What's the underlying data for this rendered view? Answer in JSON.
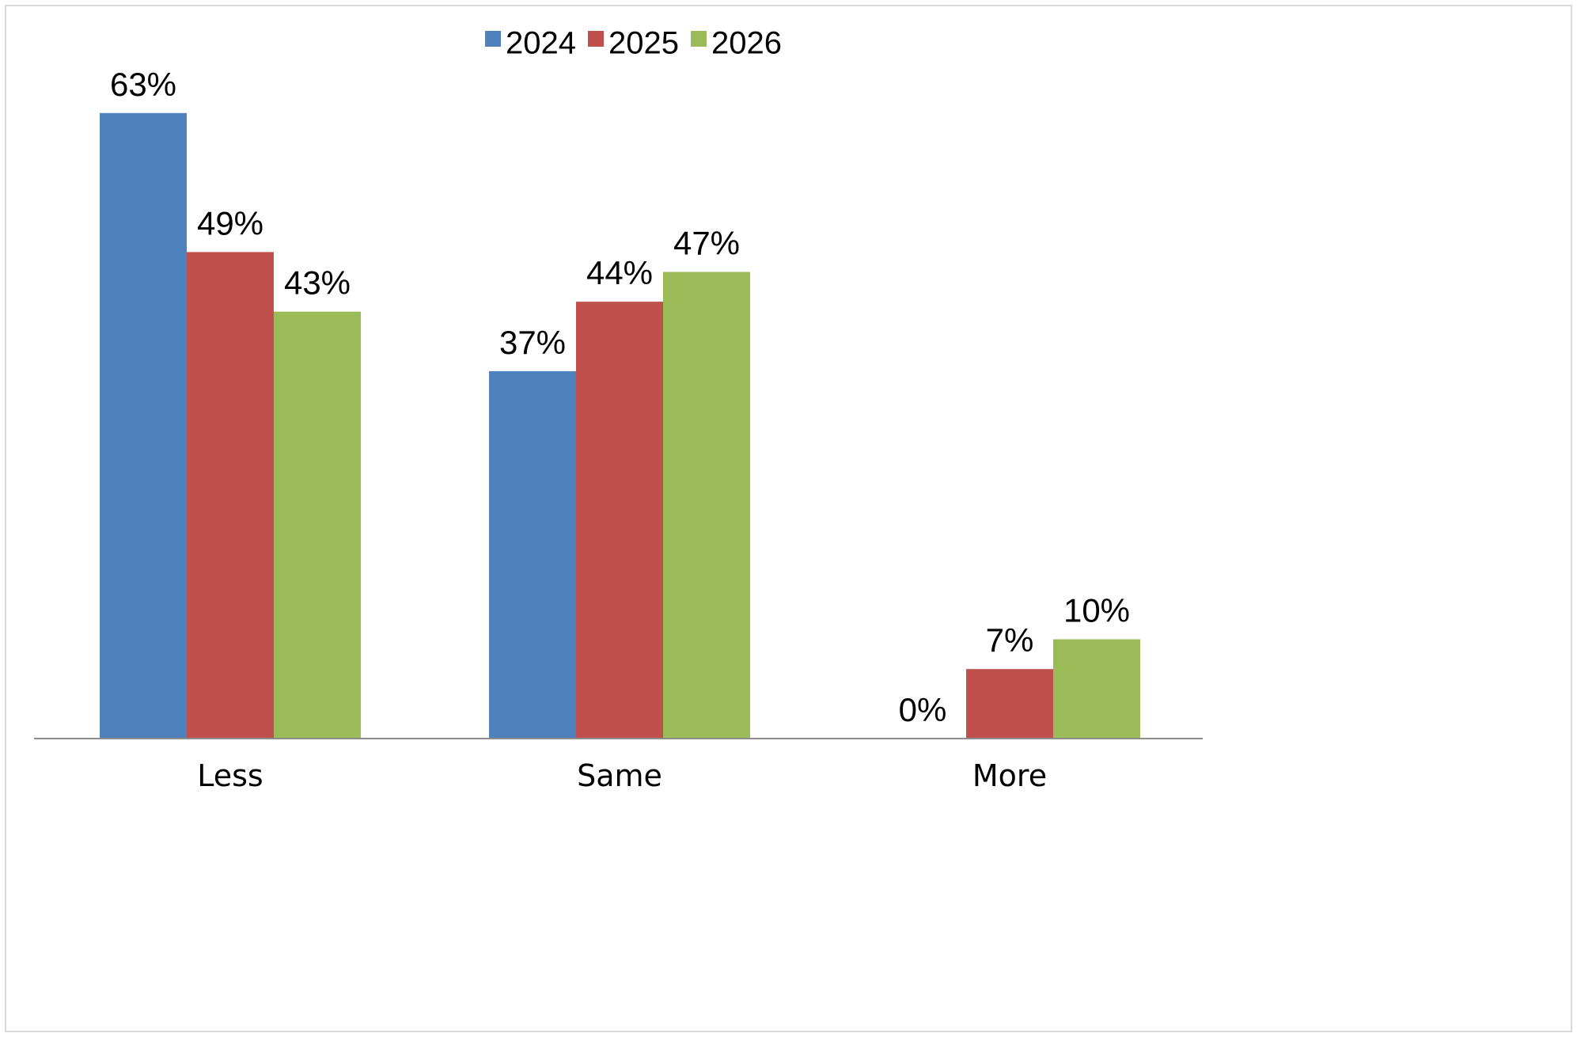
{
  "chart_data": {
    "type": "bar",
    "categories": [
      "Less",
      "Same",
      "More"
    ],
    "series": [
      {
        "name": "2024",
        "color": "#4F81BD",
        "values": [
          63,
          37,
          0
        ],
        "labels": [
          "63%",
          "37%",
          "0%"
        ]
      },
      {
        "name": "2025",
        "color": "#C0504D",
        "values": [
          49,
          44,
          7
        ],
        "labels": [
          "49%",
          "44%",
          "7%"
        ]
      },
      {
        "name": "2026",
        "color": "#9BBB59",
        "values": [
          43,
          47,
          10
        ],
        "labels": [
          "43%",
          "47%",
          "10%"
        ]
      }
    ],
    "ylim": [
      0,
      70
    ],
    "grid": false,
    "legend": "top-center",
    "axis_color": "#8c8c8c"
  }
}
